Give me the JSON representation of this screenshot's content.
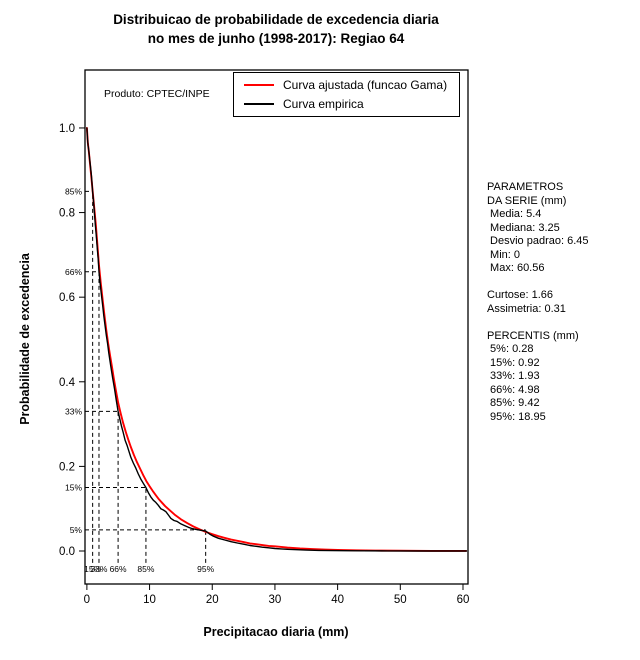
{
  "title": {
    "line1": "Distribuicao de probabilidade de excedencia diaria",
    "line2": "no mes de junho (1998-2017): Regiao 64"
  },
  "product_label": "Produto: CPTEC/INPE",
  "legend": {
    "items": [
      {
        "label": "Curva ajustada (funcao Gama)",
        "color": "#ff0000"
      },
      {
        "label": "Curva empirica",
        "color": "#000000"
      }
    ]
  },
  "stats_panel": {
    "lines": [
      "PARAMETROS",
      "DA SERIE (mm)",
      " Media: 5.4",
      " Mediana: 3.25",
      " Desvio padrao: 6.45",
      " Min: 0",
      " Max: 60.56",
      "",
      "Curtose: 1.66",
      "Assimetria: 0.31",
      "",
      "PERCENTIS (mm)",
      " 5%: 0.28",
      " 15%: 0.92",
      " 33%: 1.93",
      " 66%: 4.98",
      " 85%: 9.42",
      " 95%: 18.95"
    ]
  },
  "chart_data": {
    "type": "line",
    "title": "Distribuicao de probabilidade de excedencia diaria no mes de junho (1998-2017): Regiao 64",
    "xlabel": "Precipitacao diaria (mm)",
    "ylabel": "Probabilidade de excedencia",
    "xlim": [
      0,
      60
    ],
    "ylim": [
      0,
      1
    ],
    "x_ticks": [
      0,
      10,
      20,
      30,
      40,
      50,
      60
    ],
    "y_ticks": [
      "0.0",
      "0.2",
      "0.4",
      "0.6",
      "0.8",
      "1.0"
    ],
    "grid": false,
    "legend_position": "top",
    "series": [
      {
        "name": "Curva ajustada (funcao Gama)",
        "color": "#ff0000",
        "points": [
          [
            0,
            1.0
          ],
          [
            0.15,
            0.966
          ],
          [
            0.3,
            0.945
          ],
          [
            0.5,
            0.916
          ],
          [
            0.7,
            0.885
          ],
          [
            0.92,
            0.852
          ],
          [
            1.15,
            0.815
          ],
          [
            1.4,
            0.775
          ],
          [
            1.65,
            0.73
          ],
          [
            1.93,
            0.675
          ],
          [
            2.2,
            0.635
          ],
          [
            2.5,
            0.595
          ],
          [
            2.8,
            0.558
          ],
          [
            3.1,
            0.522
          ],
          [
            3.4,
            0.49
          ],
          [
            3.7,
            0.462
          ],
          [
            4.0,
            0.435
          ],
          [
            4.3,
            0.408
          ],
          [
            4.6,
            0.382
          ],
          [
            5.0,
            0.35
          ],
          [
            5.4,
            0.325
          ],
          [
            5.8,
            0.302
          ],
          [
            6.2,
            0.282
          ],
          [
            6.6,
            0.263
          ],
          [
            7.0,
            0.246
          ],
          [
            7.5,
            0.227
          ],
          [
            8.0,
            0.21
          ],
          [
            8.5,
            0.194
          ],
          [
            9.0,
            0.179
          ],
          [
            9.5,
            0.165
          ],
          [
            10,
            0.153
          ],
          [
            10.5,
            0.142
          ],
          [
            11,
            0.132
          ],
          [
            11.5,
            0.122
          ],
          [
            12,
            0.114
          ],
          [
            12.5,
            0.106
          ],
          [
            13,
            0.099
          ],
          [
            14,
            0.086
          ],
          [
            15,
            0.075
          ],
          [
            16,
            0.066
          ],
          [
            17,
            0.058
          ],
          [
            18,
            0.051
          ],
          [
            19,
            0.045
          ],
          [
            20,
            0.04
          ],
          [
            21,
            0.035
          ],
          [
            22,
            0.031
          ],
          [
            23,
            0.027
          ],
          [
            24,
            0.024
          ],
          [
            25,
            0.021
          ],
          [
            26,
            0.018
          ],
          [
            27,
            0.016
          ],
          [
            28,
            0.014
          ],
          [
            29,
            0.012
          ],
          [
            30,
            0.011
          ],
          [
            32,
            0.008
          ],
          [
            34,
            0.006
          ],
          [
            36,
            0.0045
          ],
          [
            38,
            0.0034
          ],
          [
            40,
            0.0025
          ],
          [
            43,
            0.0016
          ],
          [
            46,
            0.001
          ],
          [
            50,
            0.0006
          ],
          [
            55,
            0.0003
          ],
          [
            60.5,
            0.0002
          ]
        ]
      },
      {
        "name": "Curva empirica",
        "color": "#000000",
        "points": [
          [
            0,
            1.0
          ],
          [
            0.1,
            0.975
          ],
          [
            0.2,
            0.958
          ],
          [
            0.28,
            0.95
          ],
          [
            0.4,
            0.932
          ],
          [
            0.55,
            0.912
          ],
          [
            0.7,
            0.89
          ],
          [
            0.8,
            0.872
          ],
          [
            0.92,
            0.85
          ],
          [
            1.05,
            0.828
          ],
          [
            1.2,
            0.8
          ],
          [
            1.35,
            0.772
          ],
          [
            1.5,
            0.745
          ],
          [
            1.65,
            0.718
          ],
          [
            1.8,
            0.69
          ],
          [
            1.93,
            0.66
          ],
          [
            2.1,
            0.636
          ],
          [
            2.3,
            0.608
          ],
          [
            2.5,
            0.582
          ],
          [
            2.7,
            0.556
          ],
          [
            2.9,
            0.532
          ],
          [
            3.1,
            0.51
          ],
          [
            3.3,
            0.49
          ],
          [
            3.5,
            0.468
          ],
          [
            3.8,
            0.438
          ],
          [
            4.1,
            0.41
          ],
          [
            4.4,
            0.384
          ],
          [
            4.7,
            0.356
          ],
          [
            4.98,
            0.33
          ],
          [
            5.2,
            0.315
          ],
          [
            5.5,
            0.296
          ],
          [
            5.8,
            0.28
          ],
          [
            6.1,
            0.262
          ],
          [
            6.4,
            0.25
          ],
          [
            6.7,
            0.236
          ],
          [
            7.0,
            0.222
          ],
          [
            7.4,
            0.208
          ],
          [
            7.8,
            0.196
          ],
          [
            8.2,
            0.182
          ],
          [
            8.6,
            0.17
          ],
          [
            9.0,
            0.16
          ],
          [
            9.42,
            0.15
          ],
          [
            9.8,
            0.138
          ],
          [
            10.2,
            0.128
          ],
          [
            10.6,
            0.12
          ],
          [
            11,
            0.115
          ],
          [
            11.4,
            0.108
          ],
          [
            11.8,
            0.1
          ],
          [
            12.2,
            0.097
          ],
          [
            12.6,
            0.093
          ],
          [
            13,
            0.085
          ],
          [
            13.4,
            0.077
          ],
          [
            13.9,
            0.072
          ],
          [
            14.4,
            0.07
          ],
          [
            15,
            0.064
          ],
          [
            15.6,
            0.06
          ],
          [
            16.2,
            0.056
          ],
          [
            16.8,
            0.053
          ],
          [
            17.4,
            0.051
          ],
          [
            18.2,
            0.049
          ],
          [
            18.95,
            0.047
          ],
          [
            19.6,
            0.04
          ],
          [
            20.2,
            0.035
          ],
          [
            21,
            0.03
          ],
          [
            22,
            0.026
          ],
          [
            23,
            0.022
          ],
          [
            24,
            0.019
          ],
          [
            25,
            0.016
          ],
          [
            26,
            0.013
          ],
          [
            27,
            0.011
          ],
          [
            28,
            0.009
          ],
          [
            29,
            0.0075
          ],
          [
            30,
            0.006
          ],
          [
            31,
            0.005
          ],
          [
            32,
            0.004
          ],
          [
            33.5,
            0.003
          ],
          [
            35,
            0.0022
          ],
          [
            37,
            0.0015
          ],
          [
            39,
            0.001
          ],
          [
            41,
            0.0006
          ],
          [
            44,
            0.0004
          ],
          [
            48,
            0.0002
          ],
          [
            53,
            0.0001
          ],
          [
            60.56,
            0
          ]
        ]
      }
    ],
    "percentile_markers": [
      {
        "x": 0.92,
        "p": 0.85,
        "x_label": "15%",
        "y_label": "85%"
      },
      {
        "x": 1.93,
        "p": 0.66,
        "x_label": "33%",
        "y_label": "66%"
      },
      {
        "x": 4.98,
        "p": 0.33,
        "x_label": "66%",
        "y_label": "33%"
      },
      {
        "x": 9.42,
        "p": 0.15,
        "x_label": "85%",
        "y_label": "15%"
      },
      {
        "x": 18.95,
        "p": 0.05,
        "x_label": "95%",
        "y_label": "5%"
      }
    ]
  }
}
